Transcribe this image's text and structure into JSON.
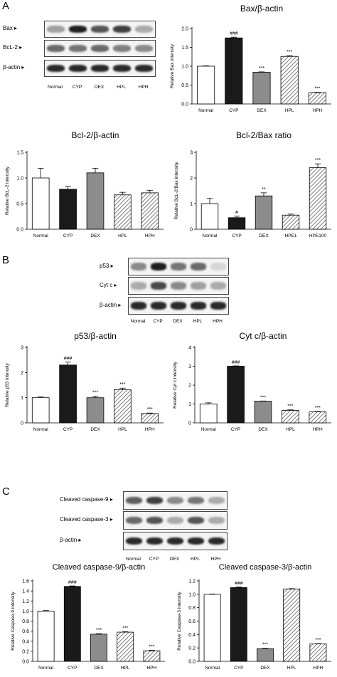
{
  "panels": {
    "a": "A",
    "b": "B",
    "c": "C"
  },
  "blots": [
    {
      "id": "blotA",
      "lanes": [
        "Normal",
        "CYP",
        "DEX",
        "HPL",
        "HPH"
      ],
      "rows": [
        {
          "label": "Bax",
          "intensity": [
            0.35,
            0.95,
            0.7,
            0.8,
            0.3
          ]
        },
        {
          "label": "BcL-2",
          "intensity": [
            0.6,
            0.55,
            0.6,
            0.5,
            0.45
          ]
        },
        {
          "label": "β-actin",
          "intensity": [
            0.9,
            0.9,
            0.9,
            0.9,
            0.9
          ]
        }
      ]
    },
    {
      "id": "blotB",
      "lanes": [
        "Normal",
        "CYP",
        "DEX",
        "HPL",
        "HPH"
      ],
      "rows": [
        {
          "label": "p53",
          "intensity": [
            0.45,
            0.95,
            0.55,
            0.6,
            0.1
          ]
        },
        {
          "label": "Cyt c",
          "intensity": [
            0.3,
            0.75,
            0.45,
            0.35,
            0.3
          ]
        },
        {
          "label": "β-actin",
          "intensity": [
            0.9,
            0.9,
            0.9,
            0.9,
            0.9
          ]
        }
      ]
    },
    {
      "id": "blotC",
      "lanes": [
        "Normal",
        "CYP",
        "DEX",
        "HPL",
        "HPH"
      ],
      "rows": [
        {
          "label": "Cleaved caspase-9",
          "intensity": [
            0.65,
            0.8,
            0.45,
            0.55,
            0.3
          ]
        },
        {
          "label": "Cleaved caspase-3",
          "intensity": [
            0.6,
            0.7,
            0.3,
            0.7,
            0.3
          ]
        },
        {
          "label": "β-actin",
          "intensity": [
            0.9,
            0.9,
            0.9,
            0.9,
            0.9
          ]
        }
      ]
    }
  ],
  "chart_data": [
    {
      "id": "bax",
      "type": "bar",
      "title": "Bax/β-actin",
      "ylabel": "Relative Bax intensity",
      "categories": [
        "Normal",
        "CYP",
        "DEX",
        "HPL",
        "HPH"
      ],
      "values": [
        1.0,
        1.75,
        0.84,
        1.26,
        0.3
      ],
      "errors": [
        0.01,
        0.02,
        0.01,
        0.02,
        0.01
      ],
      "annotations": [
        "",
        "###",
        "***",
        "***",
        "***"
      ],
      "fills": [
        "white",
        "black",
        "gray",
        "hatch",
        "hatch"
      ],
      "ylim": [
        0,
        2.0
      ],
      "yticks": [
        0.0,
        0.5,
        1.0,
        1.5,
        2.0
      ]
    },
    {
      "id": "bcl2",
      "type": "bar",
      "title": "Bcl-2/β-actin",
      "ylabel": "Relative BcL-2 intensity",
      "categories": [
        "Normal",
        "CYP",
        "DEX",
        "HPL",
        "HPH"
      ],
      "values": [
        1.0,
        0.78,
        1.1,
        0.67,
        0.71
      ],
      "errors": [
        0.19,
        0.06,
        0.09,
        0.05,
        0.05
      ],
      "annotations": [
        "",
        "",
        "",
        "",
        ""
      ],
      "fills": [
        "white",
        "black",
        "gray",
        "hatch",
        "hatch"
      ],
      "ylim": [
        0,
        1.5
      ],
      "yticks": [
        0.0,
        0.5,
        1.0,
        1.5
      ]
    },
    {
      "id": "ratio",
      "type": "bar",
      "title": "Bcl-2/Bax ratio",
      "ylabel": "Relative BcL-2/Bax intensity",
      "categories": [
        "Normal",
        "CYP",
        "DEX",
        "HPE1",
        "HPE100"
      ],
      "values": [
        1.0,
        0.45,
        1.3,
        0.55,
        2.4
      ],
      "errors": [
        0.2,
        0.06,
        0.12,
        0.04,
        0.15
      ],
      "annotations": [
        "",
        "#",
        "**",
        "",
        "***"
      ],
      "fills": [
        "white",
        "black",
        "gray",
        "hatch",
        "hatch"
      ],
      "ylim": [
        0,
        3
      ],
      "yticks": [
        0,
        1,
        2,
        3
      ]
    },
    {
      "id": "p53",
      "type": "bar",
      "title": "p53/β-actin",
      "ylabel": "Relative p53 intensity",
      "categories": [
        "Normal",
        "CYP",
        "DEX",
        "HPL",
        "HPH"
      ],
      "values": [
        1.0,
        2.3,
        1.0,
        1.32,
        0.37
      ],
      "errors": [
        0.03,
        0.12,
        0.06,
        0.06,
        0.02
      ],
      "annotations": [
        "",
        "###",
        "***",
        "***",
        "***"
      ],
      "fills": [
        "white",
        "black",
        "gray",
        "hatch",
        "hatch"
      ],
      "ylim": [
        0,
        3
      ],
      "yticks": [
        0,
        1,
        2,
        3
      ]
    },
    {
      "id": "cytc",
      "type": "bar",
      "title": "Cyt c/β-actin",
      "ylabel": "Relative Cyt c intensity",
      "categories": [
        "Normal",
        "CYP",
        "DEX",
        "HPL",
        "HPH"
      ],
      "values": [
        1.0,
        3.0,
        1.15,
        0.66,
        0.58
      ],
      "errors": [
        0.06,
        0.02,
        0.01,
        0.03,
        0.02
      ],
      "annotations": [
        "",
        "###",
        "***",
        "***",
        "***"
      ],
      "fills": [
        "white",
        "black",
        "gray",
        "hatch",
        "hatch"
      ],
      "ylim": [
        0,
        4
      ],
      "yticks": [
        0,
        1,
        2,
        3,
        4
      ]
    },
    {
      "id": "casp9",
      "type": "bar",
      "title": "Cleaved caspase-9/β-actin",
      "ylabel": "Relative Caspase-9 intensity",
      "categories": [
        "Normal",
        "CYP",
        "DEX",
        "HPL",
        "HPH"
      ],
      "values": [
        1.0,
        1.49,
        0.54,
        0.58,
        0.21
      ],
      "errors": [
        0.01,
        0.01,
        0.01,
        0.01,
        0.01
      ],
      "annotations": [
        "",
        "###",
        "***",
        "***",
        "***"
      ],
      "fills": [
        "white",
        "black",
        "gray",
        "hatch",
        "hatch"
      ],
      "ylim": [
        0,
        1.6
      ],
      "yticks": [
        0.0,
        0.2,
        0.4,
        0.6,
        0.8,
        1.0,
        1.2,
        1.4,
        1.6
      ]
    },
    {
      "id": "casp3",
      "type": "bar",
      "title": "Cleaved caspase-3/β-actin",
      "ylabel": "Relative Caspase-3 intensity",
      "categories": [
        "Normal",
        "CYP",
        "DEX",
        "HPL",
        "HPH"
      ],
      "values": [
        1.0,
        1.1,
        0.19,
        1.08,
        0.26
      ],
      "errors": [
        0.005,
        0.01,
        0.005,
        0.005,
        0.005
      ],
      "annotations": [
        "",
        "###",
        "***",
        "",
        "***"
      ],
      "fills": [
        "white",
        "black",
        "gray",
        "hatch",
        "hatch"
      ],
      "ylim": [
        0,
        1.2
      ],
      "yticks": [
        0.0,
        0.2,
        0.4,
        0.6,
        0.8,
        1.0,
        1.2
      ]
    }
  ]
}
